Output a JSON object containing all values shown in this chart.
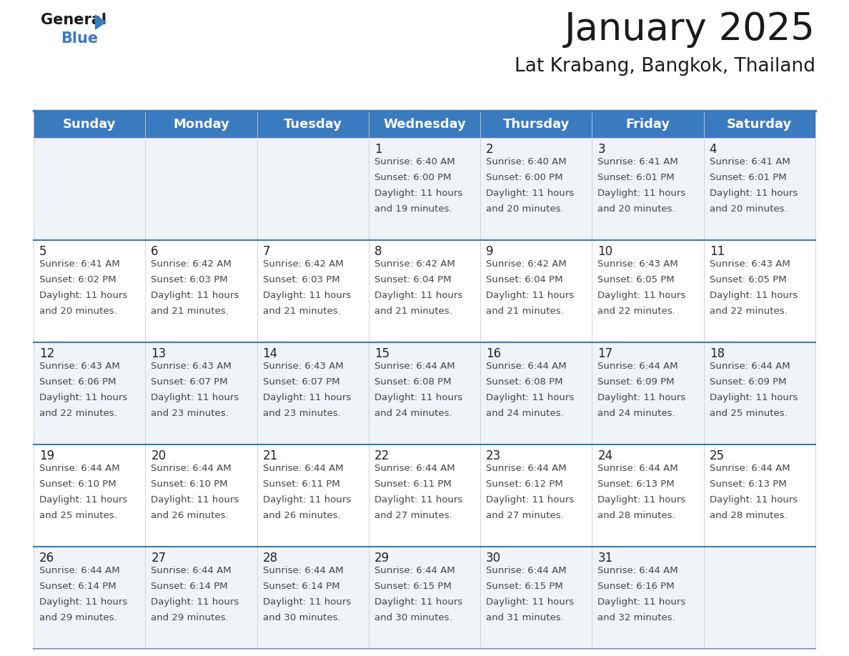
{
  "title": "January 2025",
  "subtitle": "Lat Krabang, Bangkok, Thailand",
  "header_color": "#3a7abf",
  "header_text_color": "#ffffff",
  "cell_bg_color_odd": "#f0f4f8",
  "cell_bg_color_even": "#ffffff",
  "row_divider_color": "#3a7abf",
  "cell_border_color": "#cccccc",
  "day_headers": [
    "Sunday",
    "Monday",
    "Tuesday",
    "Wednesday",
    "Thursday",
    "Friday",
    "Saturday"
  ],
  "title_fontsize": 38,
  "subtitle_fontsize": 19,
  "header_fontsize": 13,
  "day_num_fontsize": 12,
  "cell_fontsize": 9.5,
  "days": [
    {
      "date": 1,
      "col": 3,
      "row": 0,
      "sunrise": "6:40 AM",
      "sunset": "6:00 PM",
      "daylight_h": "11 hours",
      "daylight_m": "19 minutes."
    },
    {
      "date": 2,
      "col": 4,
      "row": 0,
      "sunrise": "6:40 AM",
      "sunset": "6:00 PM",
      "daylight_h": "11 hours",
      "daylight_m": "20 minutes."
    },
    {
      "date": 3,
      "col": 5,
      "row": 0,
      "sunrise": "6:41 AM",
      "sunset": "6:01 PM",
      "daylight_h": "11 hours",
      "daylight_m": "20 minutes."
    },
    {
      "date": 4,
      "col": 6,
      "row": 0,
      "sunrise": "6:41 AM",
      "sunset": "6:01 PM",
      "daylight_h": "11 hours",
      "daylight_m": "20 minutes."
    },
    {
      "date": 5,
      "col": 0,
      "row": 1,
      "sunrise": "6:41 AM",
      "sunset": "6:02 PM",
      "daylight_h": "11 hours",
      "daylight_m": "20 minutes."
    },
    {
      "date": 6,
      "col": 1,
      "row": 1,
      "sunrise": "6:42 AM",
      "sunset": "6:03 PM",
      "daylight_h": "11 hours",
      "daylight_m": "21 minutes."
    },
    {
      "date": 7,
      "col": 2,
      "row": 1,
      "sunrise": "6:42 AM",
      "sunset": "6:03 PM",
      "daylight_h": "11 hours",
      "daylight_m": "21 minutes."
    },
    {
      "date": 8,
      "col": 3,
      "row": 1,
      "sunrise": "6:42 AM",
      "sunset": "6:04 PM",
      "daylight_h": "11 hours",
      "daylight_m": "21 minutes."
    },
    {
      "date": 9,
      "col": 4,
      "row": 1,
      "sunrise": "6:42 AM",
      "sunset": "6:04 PM",
      "daylight_h": "11 hours",
      "daylight_m": "21 minutes."
    },
    {
      "date": 10,
      "col": 5,
      "row": 1,
      "sunrise": "6:43 AM",
      "sunset": "6:05 PM",
      "daylight_h": "11 hours",
      "daylight_m": "22 minutes."
    },
    {
      "date": 11,
      "col": 6,
      "row": 1,
      "sunrise": "6:43 AM",
      "sunset": "6:05 PM",
      "daylight_h": "11 hours",
      "daylight_m": "22 minutes."
    },
    {
      "date": 12,
      "col": 0,
      "row": 2,
      "sunrise": "6:43 AM",
      "sunset": "6:06 PM",
      "daylight_h": "11 hours",
      "daylight_m": "22 minutes."
    },
    {
      "date": 13,
      "col": 1,
      "row": 2,
      "sunrise": "6:43 AM",
      "sunset": "6:07 PM",
      "daylight_h": "11 hours",
      "daylight_m": "23 minutes."
    },
    {
      "date": 14,
      "col": 2,
      "row": 2,
      "sunrise": "6:43 AM",
      "sunset": "6:07 PM",
      "daylight_h": "11 hours",
      "daylight_m": "23 minutes."
    },
    {
      "date": 15,
      "col": 3,
      "row": 2,
      "sunrise": "6:44 AM",
      "sunset": "6:08 PM",
      "daylight_h": "11 hours",
      "daylight_m": "24 minutes."
    },
    {
      "date": 16,
      "col": 4,
      "row": 2,
      "sunrise": "6:44 AM",
      "sunset": "6:08 PM",
      "daylight_h": "11 hours",
      "daylight_m": "24 minutes."
    },
    {
      "date": 17,
      "col": 5,
      "row": 2,
      "sunrise": "6:44 AM",
      "sunset": "6:09 PM",
      "daylight_h": "11 hours",
      "daylight_m": "24 minutes."
    },
    {
      "date": 18,
      "col": 6,
      "row": 2,
      "sunrise": "6:44 AM",
      "sunset": "6:09 PM",
      "daylight_h": "11 hours",
      "daylight_m": "25 minutes."
    },
    {
      "date": 19,
      "col": 0,
      "row": 3,
      "sunrise": "6:44 AM",
      "sunset": "6:10 PM",
      "daylight_h": "11 hours",
      "daylight_m": "25 minutes."
    },
    {
      "date": 20,
      "col": 1,
      "row": 3,
      "sunrise": "6:44 AM",
      "sunset": "6:10 PM",
      "daylight_h": "11 hours",
      "daylight_m": "26 minutes."
    },
    {
      "date": 21,
      "col": 2,
      "row": 3,
      "sunrise": "6:44 AM",
      "sunset": "6:11 PM",
      "daylight_h": "11 hours",
      "daylight_m": "26 minutes."
    },
    {
      "date": 22,
      "col": 3,
      "row": 3,
      "sunrise": "6:44 AM",
      "sunset": "6:11 PM",
      "daylight_h": "11 hours",
      "daylight_m": "27 minutes."
    },
    {
      "date": 23,
      "col": 4,
      "row": 3,
      "sunrise": "6:44 AM",
      "sunset": "6:12 PM",
      "daylight_h": "11 hours",
      "daylight_m": "27 minutes."
    },
    {
      "date": 24,
      "col": 5,
      "row": 3,
      "sunrise": "6:44 AM",
      "sunset": "6:13 PM",
      "daylight_h": "11 hours",
      "daylight_m": "28 minutes."
    },
    {
      "date": 25,
      "col": 6,
      "row": 3,
      "sunrise": "6:44 AM",
      "sunset": "6:13 PM",
      "daylight_h": "11 hours",
      "daylight_m": "28 minutes."
    },
    {
      "date": 26,
      "col": 0,
      "row": 4,
      "sunrise": "6:44 AM",
      "sunset": "6:14 PM",
      "daylight_h": "11 hours",
      "daylight_m": "29 minutes."
    },
    {
      "date": 27,
      "col": 1,
      "row": 4,
      "sunrise": "6:44 AM",
      "sunset": "6:14 PM",
      "daylight_h": "11 hours",
      "daylight_m": "29 minutes."
    },
    {
      "date": 28,
      "col": 2,
      "row": 4,
      "sunrise": "6:44 AM",
      "sunset": "6:14 PM",
      "daylight_h": "11 hours",
      "daylight_m": "30 minutes."
    },
    {
      "date": 29,
      "col": 3,
      "row": 4,
      "sunrise": "6:44 AM",
      "sunset": "6:15 PM",
      "daylight_h": "11 hours",
      "daylight_m": "30 minutes."
    },
    {
      "date": 30,
      "col": 4,
      "row": 4,
      "sunrise": "6:44 AM",
      "sunset": "6:15 PM",
      "daylight_h": "11 hours",
      "daylight_m": "31 minutes."
    },
    {
      "date": 31,
      "col": 5,
      "row": 4,
      "sunrise": "6:44 AM",
      "sunset": "6:16 PM",
      "daylight_h": "11 hours",
      "daylight_m": "32 minutes."
    }
  ]
}
